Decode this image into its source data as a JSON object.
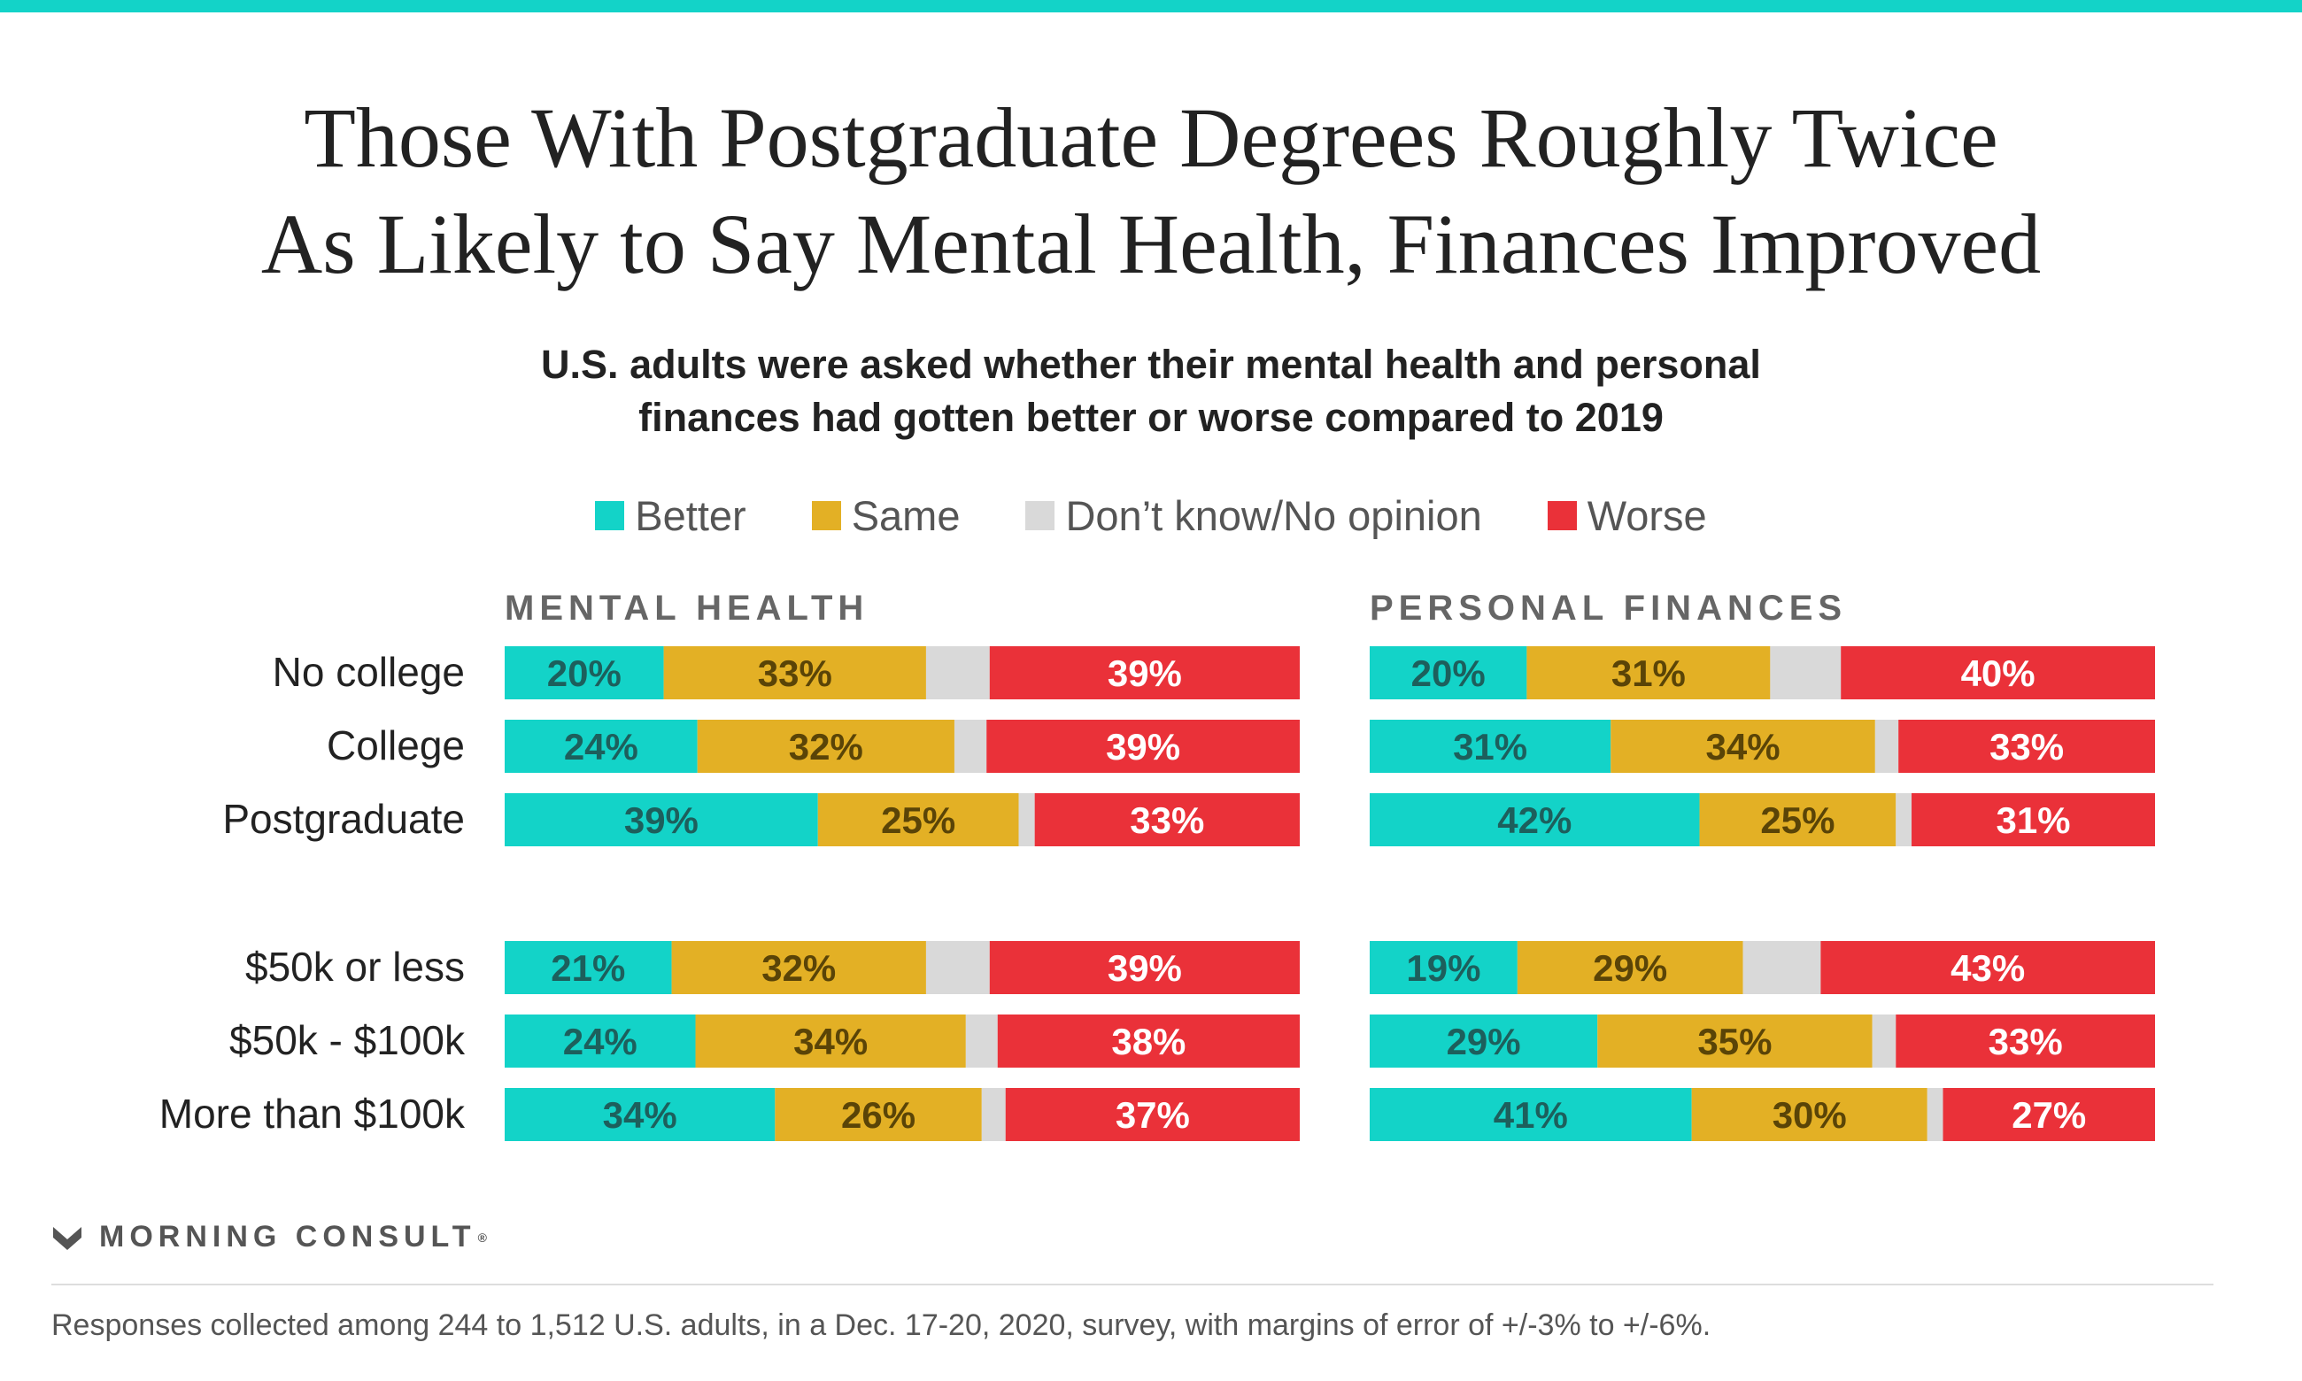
{
  "colors": {
    "better": "#13d3c8",
    "same": "#e3b025",
    "dont_know": "#d9d9d9",
    "worse": "#ea3139",
    "accent_bar": "#13d3c8"
  },
  "title_lines": [
    "Those With Postgraduate Degrees Roughly Twice",
    "As Likely to Say Mental Health, Finances Improved"
  ],
  "subtitle_lines": [
    "U.S. adults were asked whether their mental health and personal",
    "finances had gotten better or worse compared to 2019"
  ],
  "legend": [
    "Better",
    "Same",
    "Don’t know/No opinion",
    "Worse"
  ],
  "chart_data": [
    {
      "type": "bar",
      "orientation": "horizontal-stacked-100",
      "title": "MENTAL HEALTH",
      "categories": [
        "No college",
        "College",
        "Postgraduate",
        "$50k or less",
        "$50k - $100k",
        "More than $100k"
      ],
      "series": [
        {
          "name": "Better",
          "values": [
            20,
            24,
            39,
            21,
            24,
            34
          ],
          "labels": [
            "20%",
            "24%",
            "39%",
            "21%",
            "24%",
            "34%"
          ]
        },
        {
          "name": "Same",
          "values": [
            33,
            32,
            25,
            32,
            34,
            26
          ],
          "labels": [
            "33%",
            "32%",
            "25%",
            "32%",
            "34%",
            "26%"
          ]
        },
        {
          "name": "Don’t know/No opinion",
          "values": [
            8,
            4,
            2,
            8,
            4,
            3
          ],
          "labels": [
            "",
            "",
            "",
            "",
            "",
            ""
          ]
        },
        {
          "name": "Worse",
          "values": [
            39,
            39,
            33,
            39,
            38,
            37
          ],
          "labels": [
            "39%",
            "39%",
            "33%",
            "39%",
            "38%",
            "37%"
          ]
        }
      ]
    },
    {
      "type": "bar",
      "orientation": "horizontal-stacked-100",
      "title": "PERSONAL FINANCES",
      "categories": [
        "No college",
        "College",
        "Postgraduate",
        "$50k or less",
        "$50k - $100k",
        "More than $100k"
      ],
      "series": [
        {
          "name": "Better",
          "values": [
            20,
            31,
            42,
            19,
            29,
            41
          ],
          "labels": [
            "20%",
            "31%",
            "42%",
            "19%",
            "29%",
            "41%"
          ]
        },
        {
          "name": "Same",
          "values": [
            31,
            34,
            25,
            29,
            35,
            30
          ],
          "labels": [
            "31%",
            "34%",
            "25%",
            "29%",
            "35%",
            "30%"
          ]
        },
        {
          "name": "Don’t know/No opinion",
          "values": [
            9,
            3,
            2,
            10,
            3,
            2
          ],
          "labels": [
            "",
            "",
            "",
            "",
            "",
            ""
          ]
        },
        {
          "name": "Worse",
          "values": [
            40,
            33,
            31,
            43,
            33,
            27
          ],
          "labels": [
            "40%",
            "33%",
            "31%",
            "43%",
            "33%",
            "27%"
          ]
        }
      ]
    }
  ],
  "brand": "MORNING CONSULT",
  "brand_mark": "®",
  "footnote": "Responses collected among 244 to 1,512 U.S. adults, in a Dec. 17-20, 2020, survey, with margins of error of +/-3% to +/-6%."
}
